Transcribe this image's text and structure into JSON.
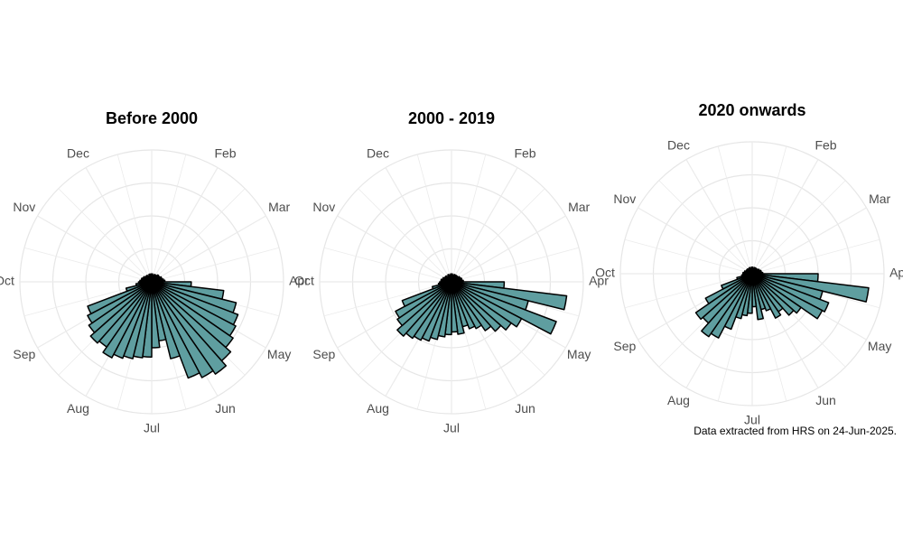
{
  "chart_data": [
    {
      "type": "polar_bar",
      "title": "Before 2000",
      "month_labels": [
        null,
        "Feb",
        "Mar",
        "Apr",
        "May",
        "Jun",
        "Jul",
        "Aug",
        "Sep",
        "Oct",
        "Nov",
        "Dec"
      ],
      "values": [
        6,
        5,
        5,
        6,
        5,
        6,
        7,
        6,
        7,
        8,
        8,
        9,
        10,
        30,
        55,
        66,
        70,
        72,
        75,
        80,
        85,
        82,
        78,
        60,
        45,
        50,
        57,
        58,
        60,
        62,
        65,
        60,
        62,
        58,
        55,
        52,
        20,
        12,
        10,
        9,
        8,
        8,
        7,
        7,
        6,
        6,
        6,
        5,
        5,
        6,
        5,
        6
      ],
      "color": "#5f9ea0",
      "ylim": [
        0,
        100
      ],
      "yticks": [
        25,
        50,
        75,
        100
      ],
      "grid": true
    },
    {
      "type": "polar_bar",
      "title": "2000 - 2019",
      "month_labels": [
        null,
        "Feb",
        "Mar",
        "Apr",
        "May",
        "Jun",
        "Jul",
        "Aug",
        "Sep",
        "Oct",
        "Nov",
        "Dec"
      ],
      "values": [
        6,
        5,
        5,
        6,
        5,
        6,
        6,
        6,
        7,
        7,
        8,
        8,
        9,
        40,
        88,
        60,
        85,
        60,
        55,
        50,
        45,
        40,
        38,
        35,
        40,
        38,
        40,
        42,
        45,
        48,
        50,
        52,
        55,
        50,
        48,
        40,
        15,
        10,
        9,
        8,
        8,
        7,
        7,
        6,
        6,
        6,
        5,
        5,
        6,
        5,
        5,
        6
      ],
      "color": "#5f9ea0",
      "ylim": [
        0,
        100
      ],
      "yticks": [
        25,
        50,
        75,
        100
      ],
      "grid": true
    },
    {
      "type": "polar_bar",
      "title": "2020 onwards",
      "month_labels": [
        null,
        "Feb",
        "Mar",
        "Apr",
        "May",
        "Jun",
        "Jul",
        "Aug",
        "Sep",
        "Oct",
        "Nov",
        "Dec"
      ],
      "values": [
        5,
        4,
        4,
        5,
        4,
        5,
        5,
        5,
        6,
        6,
        7,
        7,
        8,
        50,
        89,
        55,
        62,
        60,
        45,
        42,
        35,
        38,
        30,
        28,
        35,
        25,
        30,
        32,
        35,
        45,
        55,
        58,
        50,
        52,
        40,
        25,
        12,
        8,
        7,
        7,
        6,
        6,
        5,
        5,
        5,
        5,
        4,
        4,
        5,
        4,
        4,
        5
      ],
      "color": "#5f9ea0",
      "ylim": [
        0,
        100
      ],
      "yticks": [
        25,
        50,
        75,
        100
      ],
      "grid": true
    }
  ],
  "caption": "Data extracted from HRS on 24-Jun-2025."
}
